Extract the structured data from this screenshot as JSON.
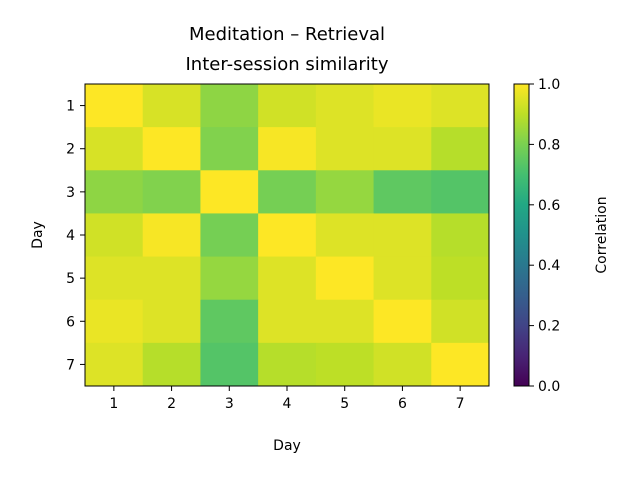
{
  "chart_data": {
    "type": "heatmap",
    "title_lines": [
      "Meditation – Retrieval",
      "Inter-session similarity"
    ],
    "xlabel": "Day",
    "ylabel": "Day",
    "x_categories": [
      "1",
      "2",
      "3",
      "4",
      "5",
      "6",
      "7"
    ],
    "y_categories": [
      "1",
      "2",
      "3",
      "4",
      "5",
      "6",
      "7"
    ],
    "values": [
      [
        1.0,
        0.94,
        0.83,
        0.93,
        0.95,
        0.97,
        0.95
      ],
      [
        0.94,
        1.0,
        0.81,
        0.99,
        0.95,
        0.95,
        0.89
      ],
      [
        0.83,
        0.81,
        1.0,
        0.79,
        0.84,
        0.75,
        0.73
      ],
      [
        0.93,
        0.99,
        0.79,
        1.0,
        0.95,
        0.95,
        0.89
      ],
      [
        0.95,
        0.95,
        0.84,
        0.95,
        1.0,
        0.95,
        0.9
      ],
      [
        0.97,
        0.95,
        0.75,
        0.95,
        0.95,
        1.0,
        0.93
      ],
      [
        0.95,
        0.89,
        0.73,
        0.89,
        0.9,
        0.93,
        1.0
      ]
    ],
    "colorbar": {
      "label": "Correlation",
      "range": [
        0,
        1
      ],
      "ticks": [
        "0.0",
        "0.2",
        "0.4",
        "0.6",
        "0.8",
        "1.0"
      ],
      "colormap": "viridis"
    },
    "grid": false
  }
}
